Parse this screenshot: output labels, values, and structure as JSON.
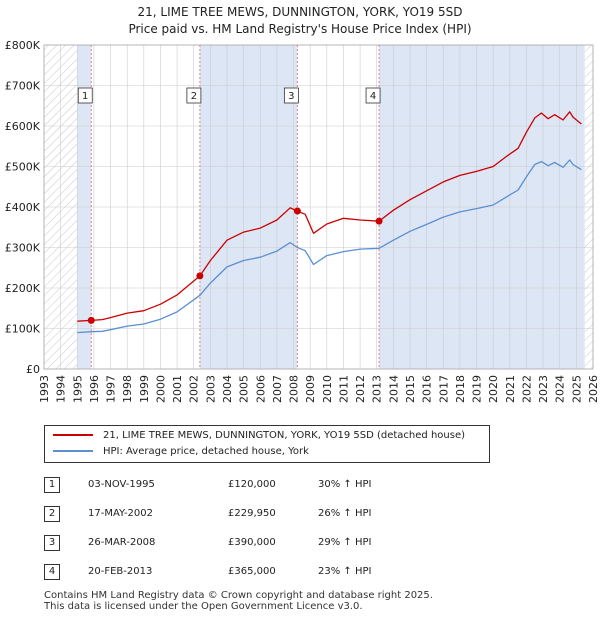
{
  "title": "21, LIME TREE MEWS, DUNNINGTON, YORK, YO19 5SD",
  "subtitle": "Price paid vs. HM Land Registry's House Price Index (HPI)",
  "colors": {
    "property": "#cc0000",
    "hpi": "#5b8fd0",
    "shade": "#dde6f5",
    "grid": "#cccccc",
    "marker_line": "#e08080"
  },
  "legend": {
    "property_label": "21, LIME TREE MEWS, DUNNINGTON, YORK, YO19 5SD (detached house)",
    "hpi_label": "HPI: Average price, detached house, York"
  },
  "sales": [
    {
      "num": "1",
      "date": "03-NOV-1995",
      "price": "£120,000",
      "hpi": "30% ↑ HPI"
    },
    {
      "num": "2",
      "date": "17-MAY-2002",
      "price": "£229,950",
      "hpi": "26% ↑ HPI"
    },
    {
      "num": "3",
      "date": "26-MAR-2008",
      "price": "£390,000",
      "hpi": "29% ↑ HPI"
    },
    {
      "num": "4",
      "date": "20-FEB-2013",
      "price": "£365,000",
      "hpi": "23% ↑ HPI"
    }
  ],
  "footer": {
    "line1": "Contains HM Land Registry data © Crown copyright and database right 2025.",
    "line2": "This data is licensed under the Open Government Licence v3.0."
  },
  "chart_data": {
    "type": "line",
    "title": "21, LIME TREE MEWS, DUNNINGTON, YORK, YO19 5SD",
    "subtitle": "Price paid vs. HM Land Registry's House Price Index (HPI)",
    "xlim": [
      1993,
      2026
    ],
    "ylim": [
      0,
      800000
    ],
    "x_ticks": [
      1993,
      1994,
      1995,
      1996,
      1997,
      1998,
      1999,
      2000,
      2001,
      2002,
      2003,
      2004,
      2005,
      2006,
      2007,
      2008,
      2009,
      2010,
      2011,
      2012,
      2013,
      2014,
      2015,
      2016,
      2017,
      2018,
      2019,
      2020,
      2021,
      2022,
      2023,
      2024,
      2025,
      2026
    ],
    "y_ticks": [
      0,
      100000,
      200000,
      300000,
      400000,
      500000,
      600000,
      700000,
      800000
    ],
    "y_tick_labels": [
      "£0",
      "£100K",
      "£200K",
      "£300K",
      "£400K",
      "£500K",
      "£600K",
      "£700K",
      "£800K"
    ],
    "grid": true,
    "shaded_ranges": [
      [
        1995.0,
        1995.84
      ],
      [
        2002.37,
        2008.23
      ],
      [
        2013.14,
        2025.5
      ]
    ],
    "sale_points": [
      {
        "label": "1",
        "x": 1995.84,
        "y": 120000
      },
      {
        "label": "2",
        "x": 2002.37,
        "y": 229950
      },
      {
        "label": "3",
        "x": 2008.23,
        "y": 390000
      },
      {
        "label": "4",
        "x": 2013.14,
        "y": 365000
      }
    ],
    "series": [
      {
        "name": "21, LIME TREE MEWS, DUNNINGTON, YORK, YO19 5SD (detached house)",
        "x": [
          1995.0,
          1995.84,
          1996.5,
          1997,
          1998,
          1999,
          2000,
          2001,
          2002.37,
          2003,
          2004,
          2005,
          2006,
          2007,
          2007.8,
          2008.23,
          2008.7,
          2009.2,
          2010,
          2011,
          2012,
          2013.14,
          2014,
          2015,
          2016,
          2017,
          2018,
          2019,
          2020,
          2020.8,
          2021.5,
          2022,
          2022.5,
          2022.9,
          2023.3,
          2023.7,
          2024.2,
          2024.6,
          2024.8,
          2025.3
        ],
        "y": [
          118000,
          120000,
          122000,
          127000,
          138000,
          144000,
          160000,
          183000,
          229950,
          268000,
          318000,
          338000,
          348000,
          368000,
          398000,
          390000,
          382000,
          335000,
          358000,
          372000,
          368000,
          365000,
          392000,
          418000,
          440000,
          462000,
          478000,
          488000,
          500000,
          525000,
          545000,
          585000,
          620000,
          632000,
          618000,
          628000,
          615000,
          635000,
          622000,
          605000
        ]
      },
      {
        "name": "HPI: Average price, detached house, York",
        "x": [
          1995.0,
          1995.84,
          1996.5,
          1997,
          1998,
          1999,
          2000,
          2001,
          2002.37,
          2003,
          2004,
          2005,
          2006,
          2007,
          2007.8,
          2008.23,
          2008.7,
          2009.2,
          2010,
          2011,
          2012,
          2013.14,
          2014,
          2015,
          2016,
          2017,
          2018,
          2019,
          2020,
          2020.8,
          2021.5,
          2022,
          2022.5,
          2022.9,
          2023.3,
          2023.7,
          2024.2,
          2024.6,
          2024.8,
          2025.3
        ],
        "y": [
          90000,
          92000,
          93000,
          97000,
          106000,
          111000,
          123000,
          141000,
          182000,
          212000,
          252000,
          268000,
          276000,
          291000,
          312000,
          300000,
          292000,
          258000,
          280000,
          290000,
          296000,
          298000,
          318000,
          340000,
          357000,
          375000,
          388000,
          396000,
          405000,
          425000,
          442000,
          475000,
          505000,
          512000,
          502000,
          510000,
          498000,
          516000,
          505000,
          492000
        ]
      }
    ]
  }
}
